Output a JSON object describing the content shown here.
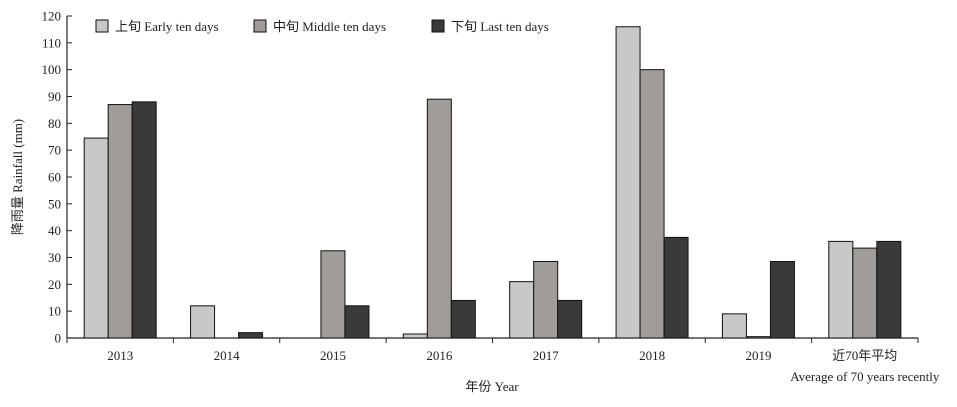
{
  "chart_data": {
    "type": "bar",
    "categories": [
      "2013",
      "2014",
      "2015",
      "2016",
      "2017",
      "2018",
      "2019",
      "近70年平均"
    ],
    "category_sublabels": [
      "",
      "",
      "",
      "",
      "",
      "",
      "",
      "Average of 70 years recently"
    ],
    "series": [
      {
        "name": "上旬 Early ten days",
        "values": [
          74.5,
          12,
          0,
          1.5,
          21,
          116,
          9,
          36
        ]
      },
      {
        "name": "中旬 Middle ten days",
        "values": [
          87,
          0,
          32.5,
          89,
          28.5,
          100,
          0.5,
          33.5
        ]
      },
      {
        "name": "下旬 Last ten days",
        "values": [
          88,
          2,
          12,
          14,
          14,
          37.5,
          28.5,
          36
        ]
      }
    ],
    "colors": [
      "#c8c8c8",
      "#a09c98",
      "#3a3a3a"
    ],
    "xlabel": "年份 Year",
    "ylabel": "降雨量 Rainfall (mm)",
    "ylim": [
      0,
      120
    ],
    "yticks": [
      0,
      10,
      20,
      30,
      40,
      50,
      60,
      70,
      80,
      90,
      100,
      110,
      120
    ],
    "grid": false,
    "legend_position": "top-left"
  }
}
